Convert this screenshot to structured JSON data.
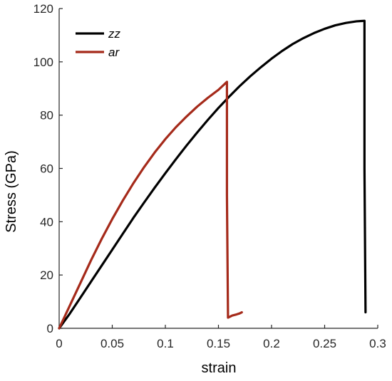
{
  "chart_data": {
    "type": "line",
    "xlabel": "strain",
    "ylabel": "Stress (GPa)",
    "xlim": [
      0,
      0.3
    ],
    "ylim": [
      0,
      120
    ],
    "xticks": [
      0,
      0.05,
      0.1,
      0.15,
      0.2,
      0.25,
      0.3
    ],
    "xtick_labels": [
      "0",
      "0.05",
      "0.1",
      "0.15",
      "0.2",
      "0.25",
      "0.3"
    ],
    "yticks": [
      0,
      20,
      40,
      60,
      80,
      100,
      120
    ],
    "ytick_labels": [
      "0",
      "20",
      "40",
      "60",
      "80",
      "100",
      "120"
    ],
    "grid": false,
    "legend_position": "top-left",
    "series": [
      {
        "name": "zz",
        "color": "#000000",
        "x": [
          0,
          0.01,
          0.02,
          0.03,
          0.04,
          0.05,
          0.06,
          0.07,
          0.08,
          0.09,
          0.1,
          0.11,
          0.12,
          0.13,
          0.14,
          0.15,
          0.16,
          0.17,
          0.18,
          0.19,
          0.2,
          0.21,
          0.22,
          0.23,
          0.24,
          0.25,
          0.26,
          0.27,
          0.28,
          0.2875,
          0.2875,
          0.2885
        ],
        "y": [
          0,
          5.5,
          11.5,
          17.5,
          23.5,
          29.5,
          35.5,
          41.5,
          47.2,
          52.8,
          58.2,
          63.5,
          68.6,
          73.5,
          78.2,
          82.7,
          86.9,
          90.9,
          94.6,
          98,
          101.2,
          104.1,
          106.7,
          108.9,
          110.8,
          112.4,
          113.7,
          114.6,
          115.2,
          115.4,
          60,
          6
        ]
      },
      {
        "name": "ar",
        "color": "#A52A1A",
        "x": [
          0,
          0.01,
          0.02,
          0.03,
          0.04,
          0.05,
          0.06,
          0.07,
          0.08,
          0.09,
          0.1,
          0.11,
          0.12,
          0.13,
          0.14,
          0.15,
          0.158,
          0.158,
          0.159,
          0.163,
          0.167,
          0.17,
          0.172
        ],
        "y": [
          0,
          8.5,
          17,
          25.5,
          33.5,
          41,
          48,
          54.5,
          60.5,
          66,
          71,
          75.5,
          79.5,
          83.2,
          86.5,
          89.5,
          92.5,
          50,
          4,
          4.8,
          5.2,
          5.6,
          6
        ]
      }
    ]
  }
}
